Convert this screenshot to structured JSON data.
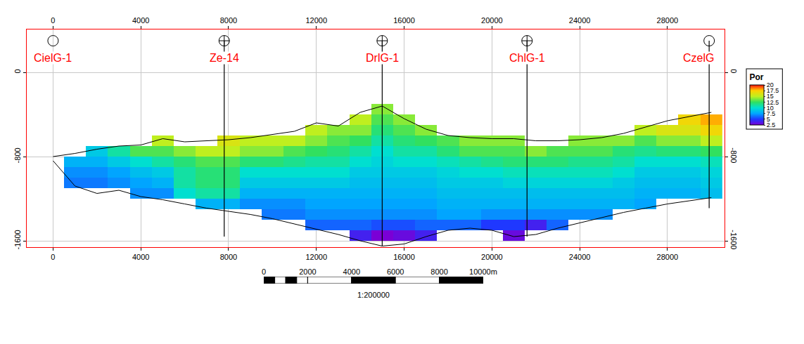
{
  "chart_data": {
    "type": "cross_section",
    "xlim": [
      -1200,
      30600
    ],
    "xticks": [
      0,
      4000,
      8000,
      12000,
      16000,
      20000,
      24000,
      28000
    ],
    "ylim": [
      -1660,
      407
    ],
    "yticks": [
      0,
      -800,
      -1600
    ],
    "grid": true,
    "x": [
      0,
      1000,
      2000,
      3000,
      4000,
      5000,
      6000,
      7000,
      8000,
      9000,
      10000,
      11000,
      12000,
      13000,
      14000,
      15000,
      16000,
      17000,
      18000,
      19000,
      20000,
      21000,
      22000,
      23000,
      24000,
      25000,
      26000,
      27000,
      28000,
      29000,
      30000
    ],
    "top_surface": [
      -800,
      -770,
      -730,
      -700,
      -690,
      -630,
      -660,
      -650,
      -640,
      -620,
      -590,
      -560,
      -480,
      -510,
      -380,
      -320,
      -440,
      -540,
      -600,
      -620,
      -630,
      -630,
      -650,
      -650,
      -640,
      -620,
      -580,
      -520,
      -460,
      -420,
      -380
    ],
    "base_surface": [
      -840,
      -1080,
      -1150,
      -1120,
      -1180,
      -1210,
      -1250,
      -1290,
      -1320,
      -1350,
      -1390,
      -1440,
      -1490,
      -1540,
      -1600,
      -1650,
      -1630,
      -1560,
      -1500,
      -1480,
      -1500,
      -1560,
      -1540,
      -1480,
      -1430,
      -1380,
      -1330,
      -1290,
      -1250,
      -1220,
      -1190
    ],
    "depths": [
      -350,
      -450,
      -550,
      -650,
      -750,
      -850,
      -950,
      -1050,
      -1150,
      -1250,
      -1350,
      -1450,
      -1550
    ],
    "porosity": [
      [
        null,
        null,
        null,
        null,
        null,
        null,
        null,
        null,
        null,
        null,
        null,
        null,
        null,
        null,
        null,
        14,
        null,
        null,
        null,
        null,
        null,
        null,
        null,
        null,
        null,
        null,
        null,
        null,
        null,
        null,
        null
      ],
      [
        null,
        null,
        null,
        null,
        null,
        null,
        null,
        null,
        null,
        null,
        null,
        null,
        null,
        null,
        15,
        13,
        14,
        null,
        null,
        null,
        null,
        null,
        null,
        null,
        null,
        null,
        null,
        null,
        null,
        17,
        18
      ],
      [
        null,
        null,
        null,
        null,
        null,
        null,
        null,
        null,
        null,
        null,
        null,
        null,
        15,
        14,
        14,
        12,
        13,
        14,
        null,
        null,
        null,
        null,
        null,
        null,
        null,
        null,
        null,
        15,
        16,
        16,
        17
      ],
      [
        null,
        null,
        null,
        null,
        null,
        15,
        null,
        null,
        16,
        15,
        15,
        15,
        14,
        13,
        12.5,
        11,
        12,
        12.5,
        13,
        14,
        14,
        14,
        null,
        null,
        14,
        14,
        14,
        13,
        14,
        14,
        15
      ],
      [
        null,
        null,
        9,
        11,
        13,
        13,
        14,
        15,
        15,
        14,
        14,
        13,
        12.5,
        12,
        11,
        10,
        11,
        11,
        12,
        13,
        13,
        13,
        14,
        13,
        13,
        13,
        12,
        11.5,
        12,
        12,
        12.5
      ],
      [
        null,
        8,
        8,
        9,
        10,
        11,
        12,
        13,
        13,
        12,
        12,
        11.5,
        11,
        11,
        10,
        9.5,
        10,
        10,
        10.5,
        11,
        11.5,
        12,
        12,
        12,
        11.5,
        11.5,
        11,
        10,
        10,
        10,
        10.5
      ],
      [
        null,
        7,
        7,
        7.5,
        8.5,
        9,
        11,
        12,
        12,
        10,
        10,
        10,
        10,
        10,
        9,
        9,
        9,
        9,
        9.5,
        10,
        10,
        10.5,
        10.5,
        10.5,
        10.5,
        10.5,
        10,
        9,
        9,
        9,
        9.5
      ],
      [
        null,
        6.5,
        6.5,
        7,
        7.5,
        8,
        11,
        12,
        12,
        9,
        9,
        9,
        9,
        9,
        8.5,
        8.5,
        8.5,
        8.5,
        9,
        9,
        9,
        9.5,
        9.5,
        9.5,
        9.5,
        9.5,
        9,
        8.5,
        8.5,
        8.5,
        9
      ],
      [
        null,
        null,
        null,
        null,
        7,
        7,
        10,
        11,
        11,
        8,
        8,
        8,
        8,
        8,
        8,
        8,
        8,
        8,
        8.5,
        8.5,
        8.5,
        8.5,
        8.5,
        8.5,
        8.5,
        8.5,
        8.5,
        8,
        8,
        8,
        8.5
      ],
      [
        null,
        null,
        null,
        null,
        null,
        null,
        null,
        8,
        8,
        7,
        7,
        7,
        7.5,
        7.5,
        7.5,
        7.5,
        7.5,
        7.5,
        8,
        8,
        8,
        8,
        8,
        8,
        8,
        8,
        8,
        7.5,
        null,
        null,
        null
      ],
      [
        null,
        null,
        null,
        null,
        null,
        null,
        null,
        null,
        null,
        null,
        6.5,
        6.5,
        7,
        7,
        7,
        7,
        7,
        7,
        7.5,
        7.5,
        7,
        7,
        7,
        7,
        7,
        7,
        null,
        null,
        null,
        null,
        null
      ],
      [
        null,
        null,
        null,
        null,
        null,
        null,
        null,
        null,
        null,
        null,
        null,
        null,
        6,
        6,
        6,
        5.5,
        5.5,
        6,
        6,
        6,
        5,
        5,
        4,
        6,
        null,
        null,
        null,
        null,
        null,
        null,
        null
      ],
      [
        null,
        null,
        null,
        null,
        null,
        null,
        null,
        null,
        null,
        null,
        null,
        null,
        null,
        null,
        4,
        2.5,
        3,
        4,
        null,
        null,
        null,
        3,
        null,
        null,
        null,
        null,
        null,
        null,
        null,
        null,
        null
      ]
    ],
    "colorbar": {
      "title": "Por",
      "range": [
        2.5,
        20
      ],
      "ticks": [
        2.5,
        5,
        7.5,
        10,
        12.5,
        15,
        17.5,
        20
      ]
    },
    "wells": [
      {
        "name": "CielG-1",
        "x": 0,
        "top": 300,
        "bottom": null,
        "marker": "circle"
      },
      {
        "name": "Ze-14",
        "x": 7800,
        "top": 300,
        "bottom": -1560,
        "marker": "circle-cross"
      },
      {
        "name": "DrlG-1",
        "x": 15000,
        "top": 300,
        "bottom": -1650,
        "marker": "circle-cross"
      },
      {
        "name": "ChlG-1",
        "x": 21600,
        "top": 300,
        "bottom": -1560,
        "marker": "circle-cross"
      },
      {
        "name": "CzelG",
        "x": 29900,
        "top": 300,
        "bottom": -1290,
        "marker": "circle"
      }
    ],
    "scale_bar": {
      "ticks": [
        0,
        2000,
        4000,
        6000,
        8000,
        {
          "value": 10000,
          "label": "10000m"
        }
      ],
      "label": "1:200000"
    }
  }
}
